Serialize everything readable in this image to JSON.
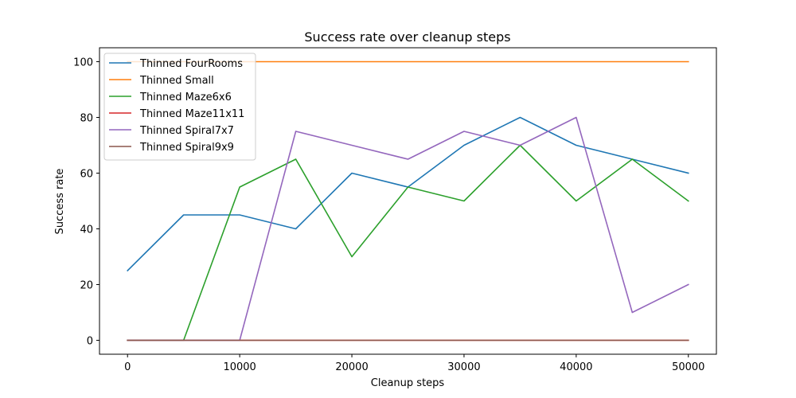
{
  "chart_data": {
    "type": "line",
    "title": "Success rate over cleanup steps",
    "xlabel": "Cleanup steps",
    "ylabel": "Success rate",
    "x": [
      0,
      5000,
      10000,
      15000,
      20000,
      25000,
      30000,
      35000,
      40000,
      45000,
      50000
    ],
    "xlim": [
      -2500,
      52500
    ],
    "ylim": [
      -5,
      105
    ],
    "xticks": [
      0,
      10000,
      20000,
      30000,
      40000,
      50000
    ],
    "yticks": [
      0,
      20,
      40,
      60,
      80,
      100
    ],
    "grid": false,
    "legend_position": "upper-left",
    "series": [
      {
        "name": "Thinned FourRooms",
        "color": "#1f77b4",
        "values": [
          25,
          45,
          45,
          40,
          60,
          55,
          70,
          80,
          70,
          65,
          60
        ]
      },
      {
        "name": "Thinned Small",
        "color": "#ff7f0e",
        "values": [
          100,
          100,
          100,
          100,
          100,
          100,
          100,
          100,
          100,
          100,
          100
        ]
      },
      {
        "name": "Thinned Maze6x6",
        "color": "#2ca02c",
        "values": [
          0,
          0,
          55,
          65,
          30,
          55,
          50,
          70,
          50,
          65,
          50
        ]
      },
      {
        "name": "Thinned Maze11x11",
        "color": "#d62728",
        "values": [
          0,
          0,
          0,
          0,
          0,
          0,
          0,
          0,
          0,
          0,
          0
        ]
      },
      {
        "name": "Thinned Spiral7x7",
        "color": "#9467bd",
        "values": [
          0,
          0,
          0,
          75,
          70,
          65,
          75,
          70,
          80,
          10,
          20
        ]
      },
      {
        "name": "Thinned Spiral9x9",
        "color": "#8c564b",
        "values": [
          0,
          0,
          0,
          0,
          0,
          0,
          0,
          0,
          0,
          0,
          0
        ]
      }
    ]
  }
}
